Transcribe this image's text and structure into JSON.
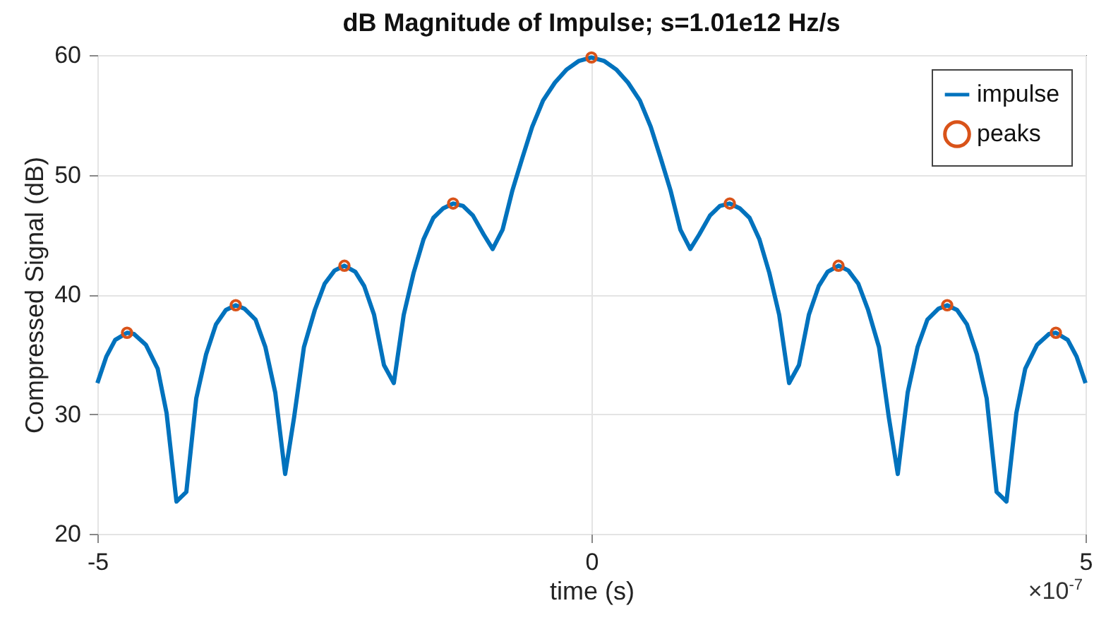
{
  "chart_data": {
    "type": "line",
    "title": "dB Magnitude of Impulse; s=1.01e12 Hz/s",
    "xlabel": "time (s)",
    "ylabel": "Compressed Signal (dB)",
    "annotations": [
      "×10$^{-7}$"
    ],
    "xlim": [
      -5,
      5
    ],
    "xticks": [
      -5,
      0,
      5
    ],
    "ylim": [
      20,
      60
    ],
    "yticks": [
      20,
      30,
      40,
      50,
      60
    ],
    "grid": true,
    "legend": "top right",
    "series": [
      {
        "name": "impulse",
        "color": "#0072bd",
        "x": [
          -5.0,
          -4.91,
          -4.82,
          -4.7,
          -4.63,
          -4.51,
          -4.39,
          -4.3,
          -4.2,
          -4.1,
          -4.0,
          -3.9,
          -3.8,
          -3.7,
          -3.6,
          -3.51,
          -3.4,
          -3.3,
          -3.2,
          -3.1,
          -3.01,
          -2.91,
          -2.8,
          -2.7,
          -2.6,
          -2.5,
          -2.39,
          -2.3,
          -2.2,
          -2.1,
          -2.0,
          -1.9,
          -1.8,
          -1.7,
          -1.6,
          -1.5,
          -1.4,
          -1.3,
          -1.2,
          -1.09,
          -1.0,
          -0.9,
          -0.8,
          -0.7,
          -0.6,
          -0.49,
          -0.37,
          -0.25,
          -0.13,
          0,
          0.13,
          0.25,
          0.37,
          0.49,
          0.6,
          0.7,
          0.8,
          0.9,
          1.0,
          1.09,
          1.2,
          1.3,
          1.4,
          1.5,
          1.6,
          1.7,
          1.8,
          1.9,
          2.0,
          2.1,
          2.2,
          2.3,
          2.39,
          2.5,
          2.6,
          2.7,
          2.8,
          2.91,
          3.01,
          3.1,
          3.2,
          3.3,
          3.4,
          3.51,
          3.6,
          3.7,
          3.8,
          3.9,
          4.0,
          4.1,
          4.2,
          4.3,
          4.39,
          4.51,
          4.63,
          4.7,
          4.82,
          4.91,
          5.0
        ],
        "values": [
          32.6,
          34.8,
          36.2,
          36.8,
          36.7,
          35.8,
          33.8,
          30.1,
          22.7,
          23.5,
          31.3,
          35.0,
          37.5,
          38.7,
          39.1,
          38.8,
          37.9,
          35.6,
          31.8,
          25.0,
          29.7,
          35.6,
          38.7,
          40.9,
          42.0,
          42.4,
          41.9,
          40.7,
          38.3,
          34.1,
          32.6,
          38.3,
          41.8,
          44.6,
          46.4,
          47.2,
          47.6,
          47.4,
          46.6,
          45.0,
          43.8,
          45.4,
          48.7,
          51.4,
          54.0,
          56.2,
          57.7,
          58.8,
          59.5,
          59.8,
          59.5,
          58.8,
          57.7,
          56.2,
          54.0,
          51.4,
          48.7,
          45.4,
          43.8,
          45.0,
          46.6,
          47.4,
          47.6,
          47.2,
          46.4,
          44.6,
          41.8,
          38.3,
          32.6,
          34.1,
          38.3,
          40.7,
          41.9,
          42.4,
          42.0,
          40.9,
          38.7,
          35.6,
          29.7,
          25.0,
          31.8,
          35.6,
          37.9,
          38.8,
          39.1,
          38.7,
          37.5,
          35.0,
          31.3,
          23.5,
          22.7,
          30.1,
          33.8,
          35.8,
          36.7,
          36.8,
          36.2,
          34.8,
          32.6
        ]
      },
      {
        "name": "peaks",
        "type": "scatter",
        "marker": "circle",
        "color": "#d95319",
        "x": [
          -4.7,
          -3.6,
          -2.5,
          -1.4,
          0,
          1.4,
          2.5,
          3.6,
          4.7
        ],
        "values": [
          36.8,
          39.1,
          42.4,
          47.6,
          59.8,
          47.6,
          42.4,
          39.1,
          36.8
        ]
      }
    ]
  }
}
